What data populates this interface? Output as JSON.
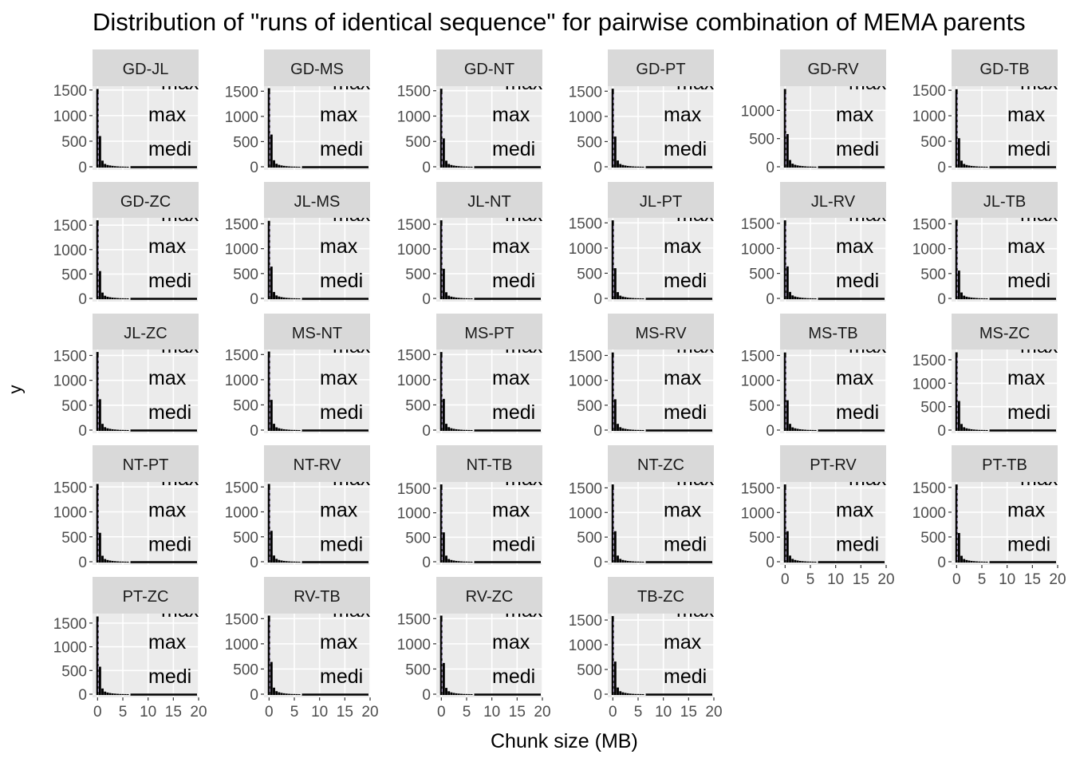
{
  "chart_data": {
    "type": "bar",
    "title": "Distribution of \"runs of identical sequence\" for pairwise combination of MEMA parents",
    "xlabel": "Chunk size (MB)",
    "ylabel": "y",
    "xlim": [
      -1,
      20
    ],
    "x_ticks": [
      0,
      5,
      10,
      15,
      20
    ],
    "x_tick_labels": [
      "0",
      "5",
      "10",
      "15",
      "20"
    ],
    "bin_width_mb": 0.5,
    "annotations": [
      "max",
      "medi"
    ],
    "panels": [
      {
        "label": "GD-JL",
        "ymax": 1575,
        "yticks": [
          0,
          500,
          1000,
          1500
        ],
        "values": [
          1520,
          600,
          120,
          55,
          35,
          25,
          18,
          12,
          8,
          5,
          4,
          3,
          2
        ]
      },
      {
        "label": "GD-MS",
        "ymax": 1600,
        "yticks": [
          0,
          500,
          1000,
          1500
        ],
        "values": [
          1560,
          640,
          130,
          60,
          38,
          26,
          18,
          12,
          8,
          5,
          4,
          3,
          2
        ]
      },
      {
        "label": "GD-NT",
        "ymax": 1590,
        "yticks": [
          0,
          500,
          1000,
          1500
        ],
        "values": [
          1540,
          560,
          120,
          55,
          35,
          24,
          17,
          12,
          8,
          5,
          4,
          3,
          2
        ]
      },
      {
        "label": "GD-PT",
        "ymax": 1600,
        "yticks": [
          0,
          500,
          1000,
          1500
        ],
        "values": [
          1550,
          600,
          125,
          55,
          36,
          25,
          17,
          12,
          8,
          5,
          4,
          3,
          2
        ]
      },
      {
        "label": "GD-RV",
        "ymax": 1430,
        "yticks": [
          0,
          500,
          1000
        ],
        "values": [
          1380,
          580,
          120,
          55,
          35,
          24,
          17,
          12,
          8,
          5,
          4,
          3,
          2
        ]
      },
      {
        "label": "GD-TB",
        "ymax": 1580,
        "yticks": [
          0,
          500,
          1000,
          1500
        ],
        "values": [
          1520,
          560,
          120,
          55,
          35,
          24,
          17,
          12,
          8,
          5,
          4,
          3,
          2
        ]
      },
      {
        "label": "GD-ZC",
        "ymax": 1650,
        "yticks": [
          0,
          500,
          1000,
          1500
        ],
        "values": [
          1600,
          560,
          120,
          55,
          35,
          24,
          17,
          12,
          8,
          5,
          4,
          3,
          2
        ]
      },
      {
        "label": "JL-MS",
        "ymax": 1620,
        "yticks": [
          0,
          500,
          1000,
          1500
        ],
        "values": [
          1560,
          640,
          130,
          60,
          38,
          26,
          18,
          12,
          8,
          5,
          4,
          3,
          2
        ]
      },
      {
        "label": "JL-NT",
        "ymax": 1630,
        "yticks": [
          0,
          500,
          1000,
          1500
        ],
        "values": [
          1580,
          600,
          125,
          55,
          36,
          25,
          17,
          12,
          8,
          5,
          4,
          3,
          2
        ]
      },
      {
        "label": "JL-PT",
        "ymax": 1600,
        "yticks": [
          0,
          500,
          1000,
          1500
        ],
        "values": [
          1550,
          600,
          125,
          55,
          36,
          25,
          17,
          12,
          8,
          5,
          4,
          3,
          2
        ]
      },
      {
        "label": "JL-RV",
        "ymax": 1610,
        "yticks": [
          0,
          500,
          1000,
          1500
        ],
        "values": [
          1560,
          640,
          130,
          60,
          38,
          26,
          18,
          12,
          8,
          5,
          4,
          3,
          2
        ]
      },
      {
        "label": "JL-TB",
        "ymax": 1620,
        "yticks": [
          0,
          500,
          1000,
          1500
        ],
        "values": [
          1580,
          560,
          120,
          55,
          35,
          24,
          17,
          12,
          8,
          5,
          4,
          3,
          2
        ]
      },
      {
        "label": "JL-ZC",
        "ymax": 1620,
        "yticks": [
          0,
          500,
          1000,
          1500
        ],
        "values": [
          1570,
          620,
          125,
          58,
          36,
          25,
          17,
          12,
          8,
          5,
          4,
          3,
          2
        ]
      },
      {
        "label": "MS-NT",
        "ymax": 1600,
        "yticks": [
          0,
          500,
          1000,
          1500
        ],
        "values": [
          1560,
          600,
          125,
          55,
          36,
          25,
          17,
          12,
          8,
          5,
          4,
          3,
          2
        ]
      },
      {
        "label": "MS-PT",
        "ymax": 1600,
        "yticks": [
          0,
          500,
          1000,
          1500
        ],
        "values": [
          1550,
          620,
          125,
          58,
          36,
          25,
          17,
          12,
          8,
          5,
          4,
          3,
          2
        ]
      },
      {
        "label": "MS-RV",
        "ymax": 1620,
        "yticks": [
          0,
          500,
          1000,
          1500
        ],
        "values": [
          1560,
          620,
          125,
          58,
          36,
          25,
          17,
          12,
          8,
          5,
          4,
          3,
          2
        ]
      },
      {
        "label": "MS-TB",
        "ymax": 1620,
        "yticks": [
          0,
          500,
          1000,
          1500
        ],
        "values": [
          1560,
          600,
          125,
          55,
          36,
          25,
          17,
          12,
          8,
          5,
          4,
          3,
          2
        ]
      },
      {
        "label": "MS-ZC",
        "ymax": 1720,
        "yticks": [
          0,
          500,
          1000,
          1500
        ],
        "values": [
          1660,
          620,
          130,
          60,
          38,
          26,
          18,
          12,
          8,
          5,
          4,
          3,
          2
        ]
      },
      {
        "label": "NT-PT",
        "ymax": 1600,
        "yticks": [
          0,
          500,
          1000,
          1500
        ],
        "values": [
          1560,
          580,
          120,
          55,
          35,
          24,
          17,
          12,
          8,
          5,
          4,
          3,
          2
        ]
      },
      {
        "label": "NT-RV",
        "ymax": 1600,
        "yticks": [
          0,
          500,
          1000,
          1500
        ],
        "values": [
          1560,
          620,
          125,
          58,
          36,
          25,
          17,
          12,
          8,
          5,
          4,
          3,
          2
        ]
      },
      {
        "label": "NT-TB",
        "ymax": 1630,
        "yticks": [
          0,
          500,
          1000,
          1500
        ],
        "values": [
          1580,
          600,
          125,
          55,
          36,
          25,
          17,
          12,
          8,
          5,
          4,
          3,
          2
        ]
      },
      {
        "label": "NT-ZC",
        "ymax": 1620,
        "yticks": [
          0,
          500,
          1000,
          1500
        ],
        "values": [
          1570,
          620,
          125,
          58,
          36,
          25,
          17,
          12,
          8,
          5,
          4,
          3,
          2
        ]
      },
      {
        "label": "PT-RV",
        "ymax": 1620,
        "yticks": [
          0,
          500,
          1000,
          1500
        ],
        "values": [
          1570,
          620,
          125,
          58,
          36,
          25,
          17,
          12,
          8,
          5,
          4,
          3,
          2
        ]
      },
      {
        "label": "PT-TB",
        "ymax": 1610,
        "yticks": [
          0,
          500,
          1000,
          1500
        ],
        "values": [
          1560,
          580,
          120,
          55,
          35,
          24,
          17,
          12,
          8,
          5,
          4,
          3,
          2
        ]
      },
      {
        "label": "PT-ZC",
        "ymax": 1700,
        "yticks": [
          0,
          500,
          1000,
          1500
        ],
        "values": [
          1640,
          580,
          120,
          55,
          35,
          24,
          17,
          12,
          8,
          5,
          4,
          3,
          2
        ]
      },
      {
        "label": "RV-TB",
        "ymax": 1600,
        "yticks": [
          0,
          500,
          1000,
          1500
        ],
        "values": [
          1560,
          640,
          130,
          60,
          38,
          26,
          18,
          12,
          8,
          5,
          4,
          3,
          2
        ]
      },
      {
        "label": "RV-ZC",
        "ymax": 1600,
        "yticks": [
          0,
          500,
          1000,
          1500
        ],
        "values": [
          1560,
          620,
          125,
          58,
          36,
          25,
          17,
          12,
          8,
          5,
          4,
          3,
          2
        ]
      },
      {
        "label": "TB-ZC",
        "ymax": 1630,
        "yticks": [
          0,
          500,
          1000,
          1500
        ],
        "values": [
          1580,
          660,
          135,
          60,
          38,
          26,
          18,
          12,
          8,
          5,
          4,
          3,
          2
        ]
      }
    ]
  },
  "colors": {
    "panel_background": "#ebebeb",
    "strip_background": "#d9d9d9",
    "grid": "#ffffff",
    "bars": "#000000",
    "tick_text": "#4d4d4d",
    "median_line": "#b5a3d6"
  }
}
